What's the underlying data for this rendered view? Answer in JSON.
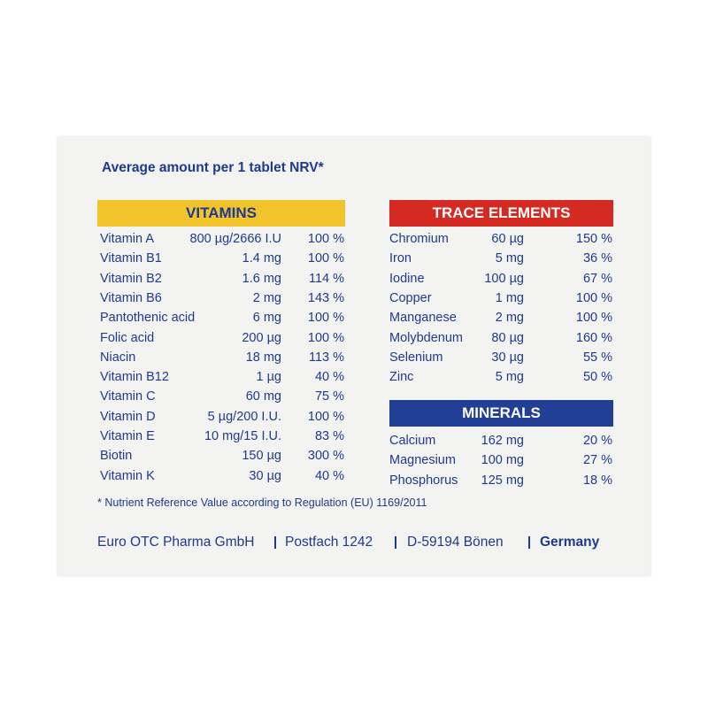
{
  "title": "Average amount per 1 tablet NRV*",
  "vitamins": {
    "header": "VITAMINS",
    "rows": [
      [
        "Vitamin A",
        "800 µg/2666 I.U",
        "100 %"
      ],
      [
        "Vitamin B1",
        "1.4 mg",
        "100 %"
      ],
      [
        "Vitamin B2",
        "1.6 mg",
        "114 %"
      ],
      [
        "Vitamin B6",
        "2 mg",
        "143 %"
      ],
      [
        "Pantothenic acid",
        "6 mg",
        "100 %"
      ],
      [
        "Folic acid",
        "200 µg",
        "100 %"
      ],
      [
        "Niacin",
        "18 mg",
        "113 %"
      ],
      [
        "Vitamin B12",
        "1 µg",
        "40 %"
      ],
      [
        "Vitamin C",
        "60 mg",
        "75 %"
      ],
      [
        "Vitamin D",
        "5 µg/200 I.U.",
        "100 %"
      ],
      [
        "Vitamin E",
        "10 mg/15 I.U.",
        "83 %"
      ],
      [
        "Biotin",
        "150 µg",
        "300 %"
      ],
      [
        "Vitamin K",
        "30 µg",
        "40 %"
      ]
    ]
  },
  "trace_elements": {
    "header": "TRACE ELEMENTS",
    "rows": [
      [
        "Chromium",
        "60 µg",
        "150 %"
      ],
      [
        "Iron",
        "5 mg",
        "36 %"
      ],
      [
        "Iodine",
        "100 µg",
        "67 %"
      ],
      [
        "Copper",
        "1 mg",
        "100 %"
      ],
      [
        "Manganese",
        "2 mg",
        "100 %"
      ],
      [
        "Molybdenum",
        "80 µg",
        "160 %"
      ],
      [
        "Selenium",
        "30 µg",
        "55 %"
      ],
      [
        "Zinc",
        "5 mg",
        "50 %"
      ]
    ]
  },
  "minerals": {
    "header": "MINERALS",
    "rows": [
      [
        "Calcium",
        "162 mg",
        "20 %"
      ],
      [
        "Magnesium",
        "100 mg",
        "27 %"
      ],
      [
        "Phosphorus",
        "125 mg",
        "18 %"
      ]
    ]
  },
  "footnote": "* Nutrient Reference Value according to Regulation (EU) 1169/2011",
  "footer": [
    "Euro OTC Pharma GmbH",
    "Postfach 1242",
    "D-59194 Bönen",
    "Germany"
  ]
}
